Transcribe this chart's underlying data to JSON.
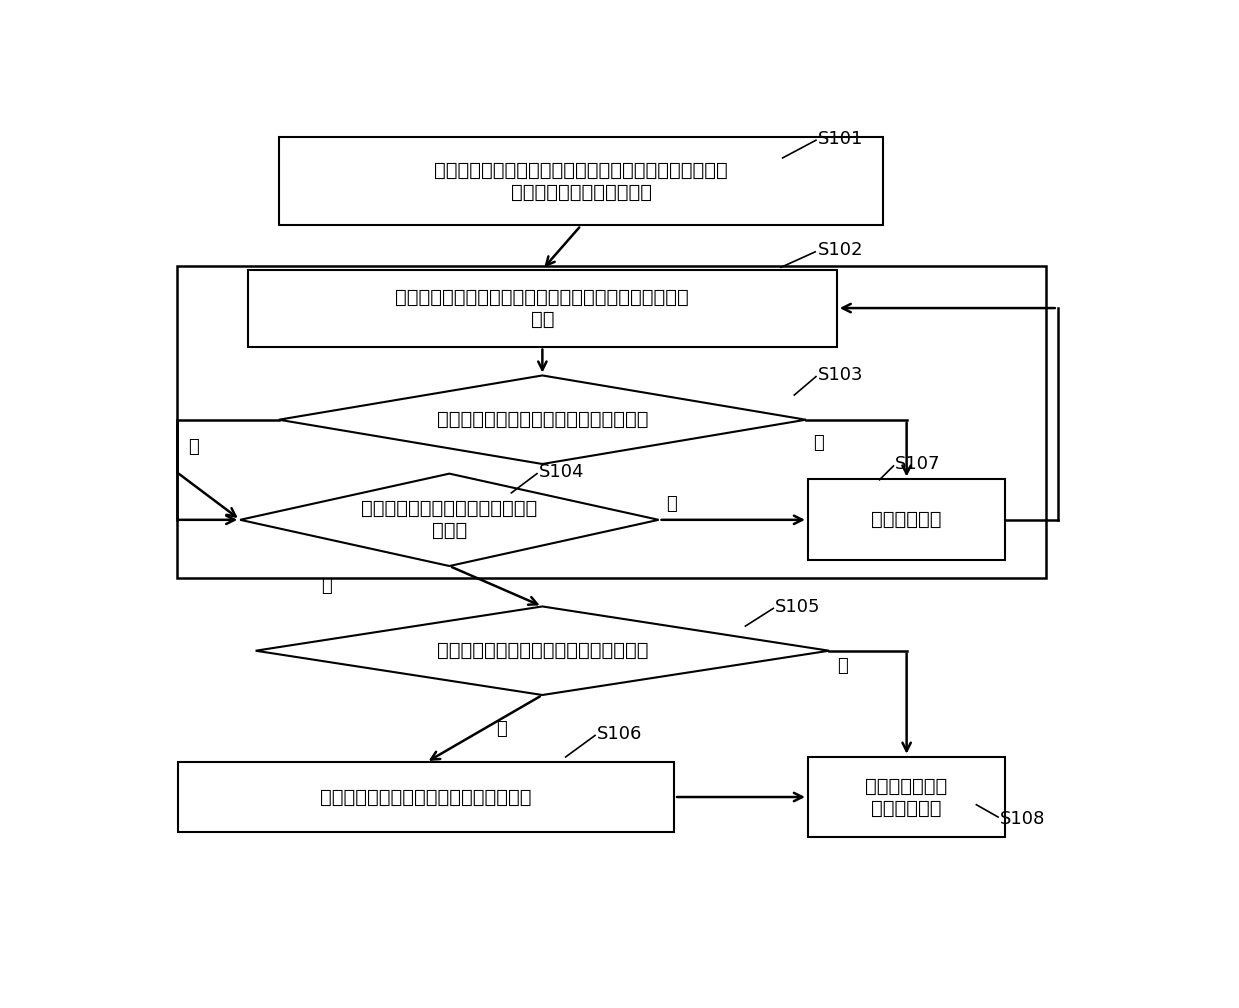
{
  "bg_color": "#ffffff",
  "line_color": "#000000",
  "box_fill": "#ffffff",
  "font_size": 14,
  "label_font_size": 13,
  "box_texts": {
    "box1": "识别电能表的规格常数，并根据所述规格常数计算出计量\n芯片的启动功率和启动时间",
    "box2": "读取电能表运行过程中的电流数据、有功功率和脉冲信号\n行为",
    "diamond3": "判断所述电流数据是否小于电流预设阈值",
    "diamond4": "判断所述有功功率是否小于功率额\n设阈值",
    "diamond5": "判断防潜动时间内是否存在脉冲信号行为",
    "box6": "立即清零计量芯片中快速脉冲计数器的值",
    "box7": "正常运行计量",
    "box8": "重新触发定时器\n进行累加计时"
  },
  "yes_label": "是",
  "no_label": "否",
  "step_labels": [
    "S101",
    "S102",
    "S103",
    "S104",
    "S105",
    "S106",
    "S107",
    "S108"
  ]
}
